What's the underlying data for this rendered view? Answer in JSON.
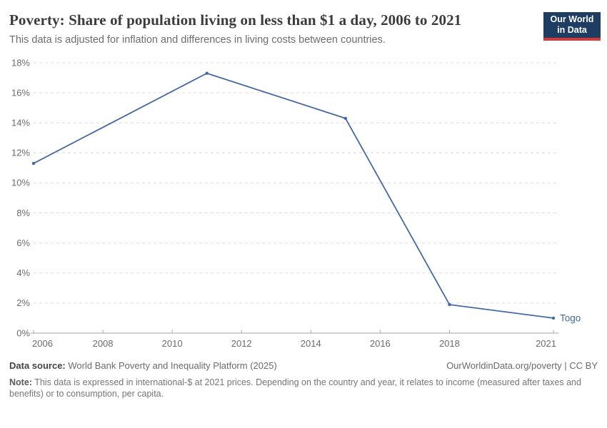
{
  "header": {
    "title": "Poverty: Share of population living on less than $1 a day, 2006 to 2021",
    "subtitle": "This data is adjusted for inflation and differences in living costs between countries.",
    "logo": {
      "line1": "Our World",
      "line2": "in Data"
    }
  },
  "chart_data": {
    "type": "line",
    "title": "Poverty: Share of population living on less than $1 a day, 2006 to 2021",
    "series": [
      {
        "name": "Togo",
        "color": "#4569a4",
        "points": [
          {
            "x": 2006,
            "y": 11.3
          },
          {
            "x": 2011,
            "y": 17.3
          },
          {
            "x": 2015,
            "y": 14.3
          },
          {
            "x": 2018,
            "y": 1.9
          },
          {
            "x": 2021,
            "y": 1.0
          }
        ]
      }
    ],
    "end_label": "Togo",
    "xlabel": "",
    "ylabel": "",
    "xlim": [
      2006,
      2021
    ],
    "ylim": [
      0,
      18
    ],
    "xticks": [
      2006,
      2008,
      2010,
      2012,
      2014,
      2016,
      2018,
      2021
    ],
    "yticks": [
      0,
      2,
      4,
      6,
      8,
      10,
      12,
      14,
      16,
      18
    ],
    "y_tick_suffix": "%",
    "grid": "horizontal-dashed",
    "legend_position": "end-of-line"
  },
  "footer": {
    "source_label": "Data source:",
    "source_text": "World Bank Poverty and Inequality Platform (2025)",
    "license": "OurWorldinData.org/poverty | CC BY",
    "note_label": "Note:",
    "note_text": "This data is expressed in international-$ at 2021 prices. Depending on the country and year, it relates to income (measured after taxes and benefits) or to consumption, per capita."
  },
  "colors": {
    "line": "#4569a4",
    "title": "#3b3b3b",
    "axis_text": "#6b6b6b",
    "gridline": "#dcdcdc",
    "axis_line": "#a6a6a6",
    "logo_navy": "#1d3d63",
    "logo_red": "#d73a36",
    "background": "#ffffff"
  }
}
